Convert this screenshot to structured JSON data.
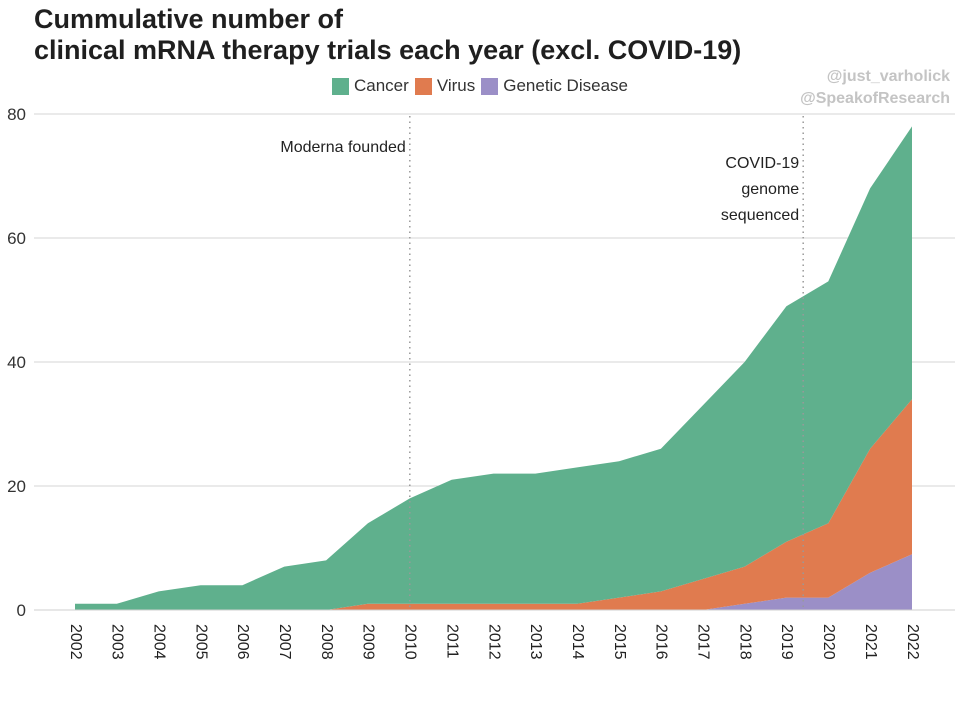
{
  "title_lines": [
    "Cummulative number of",
    "clinical mRNA therapy trials each year (excl. COVID-19)"
  ],
  "credits": [
    "@just_varholick",
    "@SpeakofResearch"
  ],
  "chart_data": {
    "type": "area",
    "stacked": true,
    "title": "Cummulative number of clinical mRNA therapy trials each year (excl. COVID-19)",
    "x": [
      2002,
      2003,
      2004,
      2005,
      2006,
      2007,
      2008,
      2009,
      2010,
      2011,
      2012,
      2013,
      2014,
      2015,
      2016,
      2017,
      2018,
      2019,
      2020,
      2021,
      2022
    ],
    "x_tick_labels": [
      "2002",
      "2003",
      "2004",
      "2005",
      "2006",
      "2007",
      "2008",
      "2009",
      "2010",
      "2011",
      "2012",
      "2013",
      "2014",
      "2015",
      "2016",
      "2017",
      "2018",
      "2019",
      "2020",
      "2021",
      "2022"
    ],
    "series": [
      {
        "name": "Genetic Disease",
        "color": "#9b8fc7",
        "values": [
          0,
          0,
          0,
          0,
          0,
          0,
          0,
          0,
          0,
          0,
          0,
          0,
          0,
          0,
          0,
          0,
          1,
          2,
          2,
          6,
          9
        ]
      },
      {
        "name": "Virus",
        "color": "#e07b4f",
        "values": [
          0,
          0,
          0,
          0,
          0,
          0,
          0,
          1,
          1,
          1,
          1,
          1,
          1,
          2,
          3,
          5,
          6,
          9,
          12,
          20,
          25
        ]
      },
      {
        "name": "Cancer",
        "color": "#5fb08d",
        "values": [
          1,
          1,
          3,
          4,
          4,
          7,
          8,
          13,
          17,
          20,
          21,
          21,
          22,
          22,
          23,
          28,
          33,
          38,
          39,
          42,
          44
        ]
      }
    ],
    "legend_order": [
      "Cancer",
      "Virus",
      "Genetic Disease"
    ],
    "legend_placement": "top",
    "ylim": [
      0,
      80
    ],
    "y_ticks": [
      0,
      20,
      40,
      60,
      80
    ],
    "grid": "horizontal",
    "annotations": [
      {
        "x": 2010,
        "lines": [
          "Moderna founded"
        ],
        "align": "left"
      },
      {
        "x": 2019.4,
        "lines": [
          "COVID-19",
          "genome",
          "sequenced"
        ],
        "align": "left"
      }
    ],
    "xlabel": "",
    "ylabel": ""
  }
}
